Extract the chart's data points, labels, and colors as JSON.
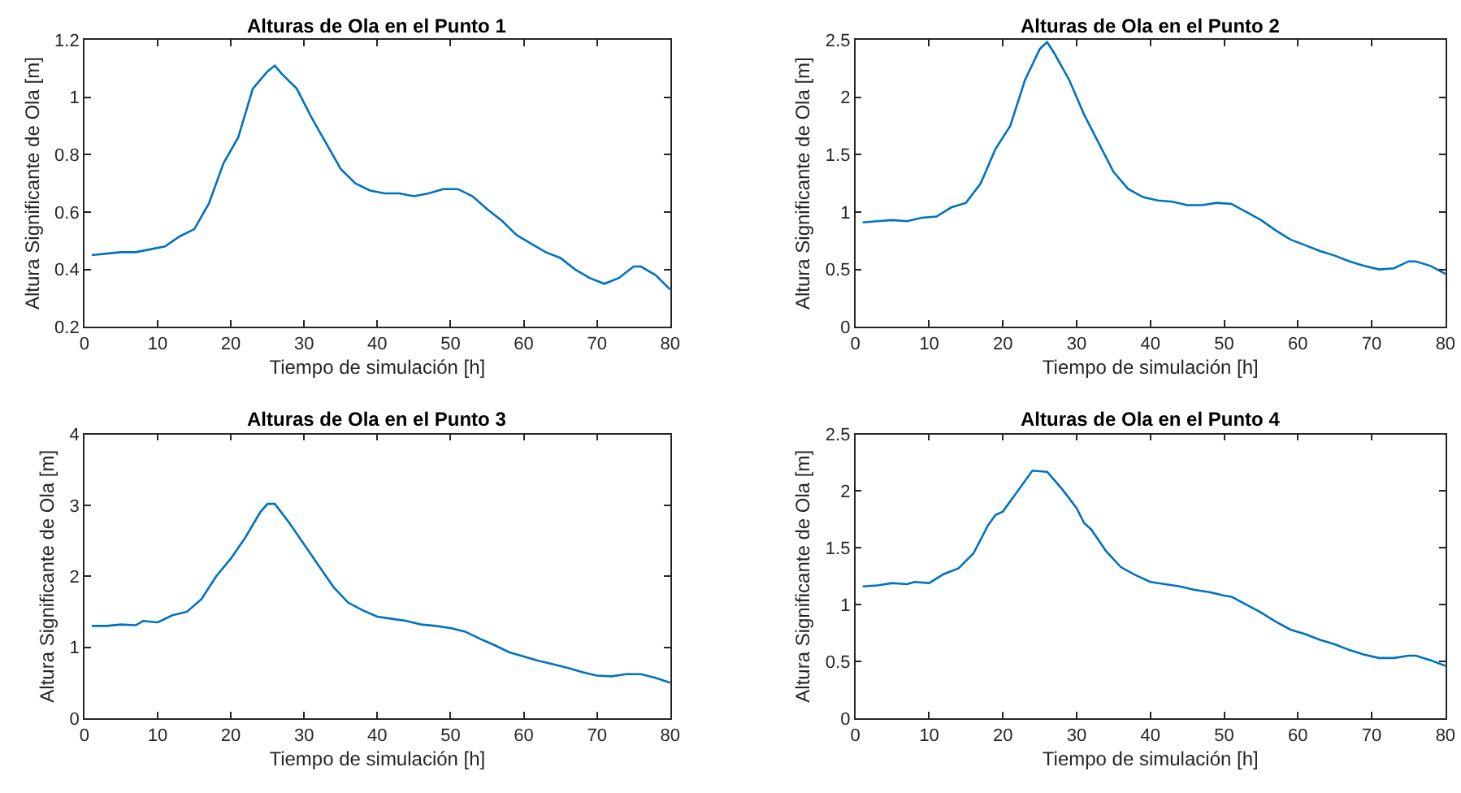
{
  "chart_data": [
    {
      "type": "line",
      "title": "Alturas de Ola en el Punto 1",
      "xlabel": "Tiempo de simulación [h]",
      "ylabel": "Altura Significante de Ola [m]",
      "xlim": [
        0,
        80
      ],
      "xticks": [
        0,
        10,
        20,
        30,
        40,
        50,
        60,
        70,
        80
      ],
      "ylim": [
        0.2,
        1.2
      ],
      "yticks": [
        {
          "value": 0.2,
          "label": "0.2"
        },
        {
          "value": 0.4,
          "label": "0.4"
        },
        {
          "value": 0.6,
          "label": "0.6"
        },
        {
          "value": 0.8,
          "label": "0.8"
        },
        1,
        {
          "value": 1.2,
          "label": "1.2"
        }
      ],
      "series": [
        {
          "color": "#0072bd",
          "x": [
            1,
            3,
            5,
            7,
            9,
            11,
            13,
            15,
            17,
            19,
            21,
            23,
            25,
            26,
            27,
            29,
            31,
            33,
            35,
            37,
            39,
            41,
            43,
            45,
            47,
            49,
            51,
            53,
            55,
            57,
            59,
            61,
            63,
            65,
            67,
            69,
            71,
            73,
            75,
            76,
            78,
            80
          ],
          "values": [
            0.45,
            0.455,
            0.46,
            0.46,
            0.47,
            0.48,
            0.515,
            0.54,
            0.63,
            0.77,
            0.86,
            1.03,
            1.09,
            1.11,
            1.08,
            1.03,
            0.93,
            0.84,
            0.75,
            0.7,
            0.675,
            0.665,
            0.665,
            0.655,
            0.665,
            0.68,
            0.68,
            0.655,
            0.61,
            0.57,
            0.52,
            0.49,
            0.46,
            0.44,
            0.4,
            0.37,
            0.35,
            0.37,
            0.41,
            0.41,
            0.38,
            0.33
          ]
        }
      ]
    },
    {
      "type": "line",
      "title": "Alturas de Ola en el Punto 2",
      "xlabel": "Tiempo de simulación [h]",
      "ylabel": "Altura Significante de Ola [m]",
      "xlim": [
        0,
        80
      ],
      "xticks": [
        0,
        10,
        20,
        30,
        40,
        50,
        60,
        70,
        80
      ],
      "ylim": [
        0,
        2.5
      ],
      "yticks": [
        0,
        0.5,
        1,
        1.5,
        2,
        2.5
      ],
      "series": [
        {
          "color": "#0072bd",
          "x": [
            1,
            3,
            5,
            7,
            9,
            11,
            13,
            15,
            17,
            19,
            21,
            23,
            25,
            26,
            27,
            29,
            31,
            33,
            35,
            37,
            39,
            41,
            43,
            45,
            47,
            49,
            51,
            53,
            55,
            57,
            59,
            61,
            63,
            65,
            67,
            69,
            71,
            73,
            75,
            76,
            78,
            80
          ],
          "values": [
            0.91,
            0.92,
            0.93,
            0.92,
            0.95,
            0.96,
            1.04,
            1.08,
            1.25,
            1.55,
            1.75,
            2.15,
            2.42,
            2.48,
            2.38,
            2.15,
            1.85,
            1.6,
            1.35,
            1.2,
            1.13,
            1.1,
            1.09,
            1.06,
            1.06,
            1.08,
            1.07,
            1.0,
            0.93,
            0.84,
            0.76,
            0.71,
            0.66,
            0.62,
            0.57,
            0.53,
            0.5,
            0.51,
            0.57,
            0.57,
            0.53,
            0.46
          ]
        }
      ]
    },
    {
      "type": "line",
      "title": "Alturas de Ola en el Punto 3",
      "xlabel": "Tiempo de simulación [h]",
      "ylabel": "Altura Significante de Ola [m]",
      "xlim": [
        0,
        80
      ],
      "xticks": [
        0,
        10,
        20,
        30,
        40,
        50,
        60,
        70,
        80
      ],
      "ylim": [
        0,
        4
      ],
      "yticks": [
        0,
        1,
        2,
        3,
        4
      ],
      "series": [
        {
          "color": "#0072bd",
          "x": [
            1,
            3,
            5,
            7,
            8,
            10,
            12,
            14,
            16,
            18,
            20,
            22,
            24,
            25,
            26,
            28,
            30,
            32,
            34,
            36,
            38,
            40,
            42,
            44,
            46,
            48,
            50,
            52,
            54,
            56,
            58,
            60,
            62,
            64,
            66,
            68,
            70,
            72,
            74,
            76,
            78,
            80
          ],
          "values": [
            1.3,
            1.3,
            1.32,
            1.31,
            1.37,
            1.35,
            1.45,
            1.5,
            1.68,
            2.0,
            2.25,
            2.55,
            2.9,
            3.02,
            3.02,
            2.75,
            2.45,
            2.15,
            1.85,
            1.63,
            1.52,
            1.43,
            1.4,
            1.37,
            1.32,
            1.3,
            1.27,
            1.22,
            1.12,
            1.03,
            0.93,
            0.87,
            0.81,
            0.76,
            0.71,
            0.65,
            0.6,
            0.59,
            0.62,
            0.62,
            0.57,
            0.5
          ]
        }
      ]
    },
    {
      "type": "line",
      "title": "Alturas de Ola en el Punto 4",
      "xlabel": "Tiempo de simulación [h]",
      "ylabel": "Altura Significante de Ola [m]",
      "xlim": [
        0,
        80
      ],
      "xticks": [
        0,
        10,
        20,
        30,
        40,
        50,
        60,
        70,
        80
      ],
      "ylim": [
        0,
        2.5
      ],
      "yticks": [
        0,
        0.5,
        1,
        1.5,
        2,
        2.5
      ],
      "series": [
        {
          "color": "#0072bd",
          "x": [
            1,
            3,
            5,
            7,
            8,
            10,
            12,
            14,
            16,
            18,
            19,
            20,
            22,
            24,
            26,
            28,
            30,
            31,
            32,
            34,
            36,
            38,
            40,
            42,
            44,
            46,
            48,
            50,
            51,
            53,
            55,
            57,
            59,
            61,
            63,
            65,
            67,
            69,
            71,
            73,
            75,
            76,
            78,
            80
          ],
          "values": [
            1.16,
            1.17,
            1.19,
            1.18,
            1.2,
            1.19,
            1.27,
            1.32,
            1.45,
            1.7,
            1.79,
            1.82,
            2.0,
            2.18,
            2.17,
            2.02,
            1.85,
            1.72,
            1.66,
            1.47,
            1.33,
            1.26,
            1.2,
            1.18,
            1.16,
            1.13,
            1.11,
            1.08,
            1.07,
            1.0,
            0.93,
            0.85,
            0.78,
            0.74,
            0.69,
            0.65,
            0.6,
            0.56,
            0.53,
            0.53,
            0.55,
            0.55,
            0.51,
            0.46
          ]
        }
      ]
    }
  ]
}
